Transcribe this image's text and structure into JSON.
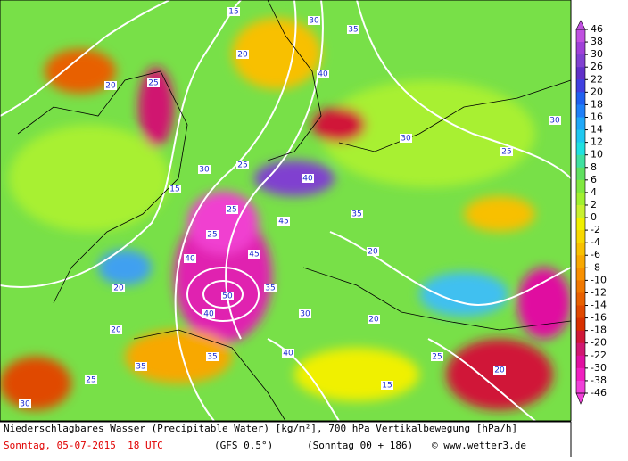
{
  "colorbar": {
    "levels": [
      46,
      38,
      30,
      26,
      22,
      20,
      18,
      16,
      14,
      12,
      10,
      8,
      6,
      4,
      2,
      0,
      -2,
      -4,
      -6,
      -8,
      -10,
      -12,
      -14,
      -16,
      -18,
      -20,
      -22,
      -30,
      -38,
      -46
    ],
    "colors": [
      "#c050e0",
      "#a040d8",
      "#8040d0",
      "#6030c8",
      "#4040e0",
      "#2060f0",
      "#2080f8",
      "#20a8f8",
      "#20c8f0",
      "#20e0e0",
      "#40e0a0",
      "#60e060",
      "#80e840",
      "#a0f030",
      "#c8f030",
      "#f0f000",
      "#f8d800",
      "#f8c000",
      "#f8a800",
      "#f89000",
      "#f07800",
      "#e86000",
      "#e04800",
      "#d83000",
      "#d01838",
      "#d01870",
      "#e010a0",
      "#f020c0",
      "#f040d8"
    ]
  },
  "map_labels": [
    15,
    20,
    25,
    30,
    35,
    40,
    45,
    50,
    40,
    35,
    30,
    25,
    20,
    25,
    30,
    35,
    40,
    45,
    40,
    35,
    20,
    25,
    30,
    35,
    40,
    20,
    25,
    30,
    15,
    20,
    25,
    30,
    20,
    25,
    15,
    20
  ],
  "footer": {
    "title": "Niederschlagbares Wasser (Precipitable Water) [kg/m²], 700 hPa Vertikalbewegung [hPa/h]",
    "date": "Sonntag, 05-07-2015  18 UTC",
    "model": "(GFS 0.5°)",
    "run": "(Sonntag 00 + 186)",
    "credit": "© www.wetter3.de"
  }
}
